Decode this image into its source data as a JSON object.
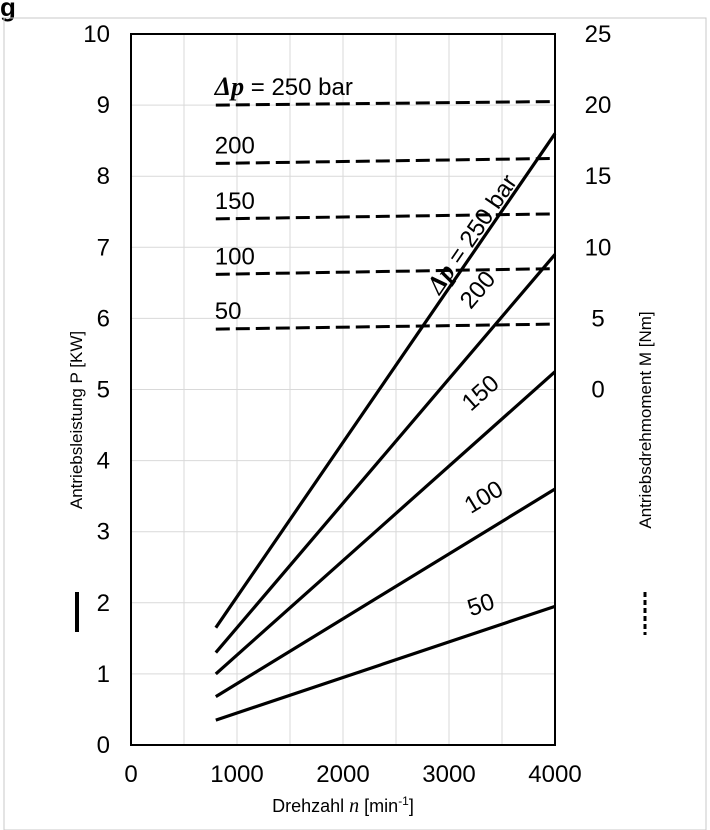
{
  "figure": {
    "caption_fragment": "g",
    "xlabel_main": "Drehzahl",
    "xlabel_var": "n",
    "xlabel_unit_open": " [min",
    "xlabel_unit_exp": "-1",
    "xlabel_unit_close": "]",
    "ylabel_left": "Antriebsleistung P [KW]",
    "ylabel_right": "Antriebsdrehmoment M [Nm]"
  },
  "chart_data": {
    "type": "line",
    "x_axis": {
      "label": "Drehzahl n [min-1]",
      "range": [
        0,
        4000
      ],
      "ticks": [
        0,
        1000,
        2000,
        3000,
        4000
      ]
    },
    "y_axis_left": {
      "label": "Antriebsleistung P [KW]",
      "range": [
        0,
        10
      ],
      "ticks": [
        0,
        1,
        2,
        3,
        4,
        5,
        6,
        7,
        8,
        9,
        10
      ]
    },
    "y_axis_right": {
      "label": "Antriebsdrehmoment M [Nm]",
      "tick_labels": [
        "25",
        "20",
        "15",
        "10",
        "5",
        "0"
      ],
      "tick_positions_left_units": [
        10,
        9,
        8,
        7,
        6,
        5
      ]
    },
    "grid": true,
    "power_series": [
      {
        "label": "Δp = 250 bar",
        "style": "solid",
        "points": [
          [
            800,
            1.65
          ],
          [
            4000,
            8.6
          ]
        ]
      },
      {
        "label": "200",
        "style": "solid",
        "points": [
          [
            800,
            1.3
          ],
          [
            4000,
            6.9
          ]
        ]
      },
      {
        "label": "150",
        "style": "solid",
        "points": [
          [
            800,
            1.0
          ],
          [
            4000,
            5.25
          ]
        ]
      },
      {
        "label": "100",
        "style": "solid",
        "points": [
          [
            800,
            0.68
          ],
          [
            4000,
            3.6
          ]
        ]
      },
      {
        "label": "50",
        "style": "solid",
        "points": [
          [
            800,
            0.35
          ],
          [
            4000,
            1.95
          ]
        ]
      }
    ],
    "torque_series": [
      {
        "label": "Δp = 250 bar",
        "style": "dashed",
        "points": [
          [
            800,
            9.0
          ],
          [
            4000,
            9.05
          ]
        ]
      },
      {
        "label": "200",
        "style": "dashed",
        "points": [
          [
            800,
            8.18
          ],
          [
            4000,
            8.25
          ]
        ]
      },
      {
        "label": "150",
        "style": "dashed",
        "points": [
          [
            800,
            7.4
          ],
          [
            4000,
            7.47
          ]
        ]
      },
      {
        "label": "100",
        "style": "dashed",
        "points": [
          [
            800,
            6.62
          ],
          [
            4000,
            6.7
          ]
        ]
      },
      {
        "label": "50",
        "style": "dashed",
        "points": [
          [
            800,
            5.85
          ],
          [
            4000,
            5.92
          ]
        ]
      }
    ],
    "legend_left": "solid line = Antriebsleistung P",
    "legend_right": "dashed line = Antriebsdrehmoment M"
  }
}
